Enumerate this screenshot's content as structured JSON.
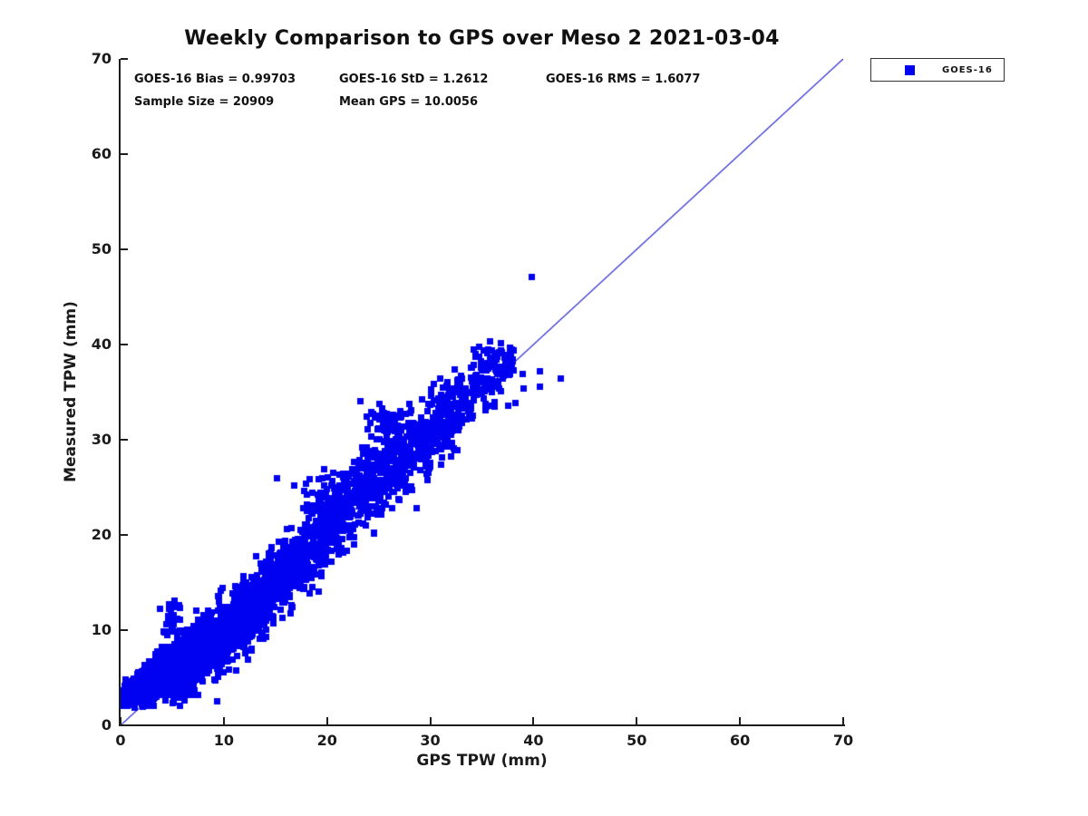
{
  "title": "Weekly Comparison to GPS over Meso 2 2021-03-04",
  "stats": {
    "bias_label": "GOES-16 Bias = 0.99703",
    "std_label": "GOES-16 StD = 1.2612",
    "rms_label": "GOES-16 RMS = 1.6077",
    "sample_label": "Sample Size = 20909",
    "mean_gps_label": "Mean GPS = 10.0056"
  },
  "legend": {
    "label": "GOES-16",
    "marker_color": "#0101f2"
  },
  "axes": {
    "xlabel": "GPS TPW (mm)",
    "ylabel": "Measured TPW (mm)",
    "xlim": [
      0,
      70
    ],
    "ylim": [
      0,
      70
    ],
    "xticks": [
      0,
      10,
      20,
      30,
      40,
      50,
      60,
      70
    ],
    "yticks": [
      0,
      10,
      20,
      30,
      40,
      50,
      60,
      70
    ],
    "grid": false,
    "box": false,
    "tick_direction": "in"
  },
  "chart_data": {
    "type": "scatter",
    "title": "Weekly Comparison to GPS over Meso 2 2021-03-04",
    "xlabel": "GPS TPW (mm)",
    "ylabel": "Measured TPW (mm)",
    "xlim": [
      0,
      70
    ],
    "ylim": [
      0,
      70
    ],
    "legend_position": "top-right-outside",
    "series": [
      {
        "name": "GOES-16",
        "marker": "filled-square",
        "color": "#0101f2",
        "description": "Dense cloud of 20909 GOES-16 vs GPS TPW matchups hugging the 1:1 line from (0,2.5) to (38,38), mean GPS 10.0056 mm, bias 0.99703 mm, std 1.2612 mm, rms 1.6077 mm"
      }
    ],
    "reference_line": {
      "from": [
        0,
        0
      ],
      "to": [
        70,
        70
      ],
      "color": "#2020cc",
      "width": 1.2
    },
    "stats": {
      "bias": 0.99703,
      "std": 1.2612,
      "rms": 1.6077,
      "sample_size": 20909,
      "mean_gps": 10.0056
    },
    "scatter_model": {
      "seed": 42,
      "marker_px": 7,
      "segments": [
        {
          "x0": 0.2,
          "x1": 2.0,
          "n": 420,
          "bias": 2.4,
          "sigma": 0.7,
          "floor": 2.1
        },
        {
          "x0": 2.0,
          "x1": 5.0,
          "n": 620,
          "bias": 1.3,
          "sigma": 1.1,
          "floor": 2.0
        },
        {
          "x0": 5.0,
          "x1": 9.0,
          "n": 680,
          "bias": 0.4,
          "sigma": 1.5,
          "floor": 0.5
        },
        {
          "x0": 9.0,
          "x1": 14.0,
          "n": 560,
          "bias": -0.4,
          "sigma": 1.8,
          "floor": 0.5
        },
        {
          "x0": 14.0,
          "x1": 20.0,
          "n": 470,
          "bias": 0.1,
          "sigma": 1.8,
          "floor": 0.5
        },
        {
          "x0": 20.0,
          "x1": 27.0,
          "n": 420,
          "bias": 1.2,
          "sigma": 2.0,
          "floor": 0.5
        },
        {
          "x0": 27.0,
          "x1": 33.0,
          "n": 330,
          "bias": 1.0,
          "sigma": 1.9,
          "floor": 0.5
        },
        {
          "x0": 33.0,
          "x1": 38.0,
          "n": 130,
          "bias": 0.7,
          "sigma": 1.4,
          "floor": 0.5
        }
      ],
      "clusters": [
        {
          "cx": 5.0,
          "cy": 11.2,
          "sx": 0.5,
          "sy": 1.0,
          "n": 30
        },
        {
          "cx": 19.5,
          "cy": 24.0,
          "sx": 1.3,
          "sy": 1.3,
          "n": 50
        },
        {
          "cx": 25.7,
          "cy": 32.2,
          "sx": 1.0,
          "sy": 1.1,
          "n": 45
        },
        {
          "cx": 35.3,
          "cy": 38.2,
          "sx": 1.1,
          "sy": 0.9,
          "n": 30
        }
      ],
      "outliers": [
        [
          39.8,
          47.1
        ],
        [
          36.8,
          40.2
        ],
        [
          36.9,
          39.2
        ],
        [
          34.7,
          39.8
        ],
        [
          38.9,
          37.0
        ],
        [
          39.0,
          35.4
        ],
        [
          40.6,
          37.2
        ],
        [
          40.6,
          35.6
        ],
        [
          42.6,
          36.5
        ],
        [
          37.5,
          33.6
        ],
        [
          38.2,
          33.9
        ],
        [
          36.2,
          33.5
        ],
        [
          28.6,
          22.9
        ],
        [
          19.8,
          17.0
        ],
        [
          1.3,
          1.9
        ]
      ]
    }
  }
}
